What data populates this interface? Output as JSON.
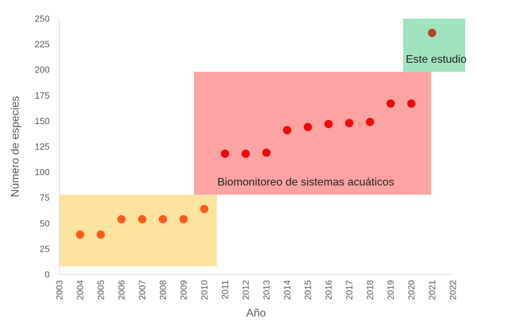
{
  "chart_data": {
    "type": "scatter",
    "title": "",
    "xlabel": "Año",
    "ylabel": "Número de especies",
    "xlim": [
      2003,
      2022
    ],
    "ylim": [
      0,
      250
    ],
    "x_ticks": [
      2003,
      2004,
      2005,
      2006,
      2007,
      2008,
      2009,
      2010,
      2011,
      2012,
      2013,
      2014,
      2015,
      2016,
      2017,
      2018,
      2019,
      2020,
      2021,
      2022
    ],
    "y_ticks": [
      0,
      25,
      50,
      75,
      100,
      125,
      150,
      175,
      200,
      225,
      250
    ],
    "grid": false,
    "legend": "none",
    "regions": [
      {
        "label": "",
        "x": [
          2003.0,
          2010.6
        ],
        "y": [
          8,
          78
        ],
        "color": "#fde3a0"
      },
      {
        "label": "Biomonitoreo de sistemas acuáticos",
        "x": [
          2009.5,
          2020.95
        ],
        "y": [
          78,
          198
        ],
        "color": "#fea3a3"
      },
      {
        "label": "Este estudio",
        "x": [
          2019.6,
          2022.6
        ],
        "y": [
          198,
          250
        ],
        "color": "#a1e2be"
      }
    ],
    "series": [
      {
        "color": "#ff5a1e",
        "points": [
          {
            "x": 2004,
            "y": 39
          },
          {
            "x": 2005,
            "y": 39
          },
          {
            "x": 2006,
            "y": 54
          },
          {
            "x": 2007,
            "y": 54
          },
          {
            "x": 2008,
            "y": 54
          },
          {
            "x": 2009,
            "y": 54
          },
          {
            "x": 2010,
            "y": 64
          }
        ]
      },
      {
        "color": "#ee0a0a",
        "points": [
          {
            "x": 2011,
            "y": 118
          },
          {
            "x": 2012,
            "y": 118
          },
          {
            "x": 2013,
            "y": 119
          },
          {
            "x": 2014,
            "y": 141
          },
          {
            "x": 2015,
            "y": 144
          },
          {
            "x": 2016,
            "y": 147
          },
          {
            "x": 2017,
            "y": 148
          },
          {
            "x": 2018,
            "y": 149
          },
          {
            "x": 2019,
            "y": 167
          },
          {
            "x": 2020,
            "y": 167
          }
        ]
      },
      {
        "color": "#b5432a",
        "points": [
          {
            "x": 2021,
            "y": 236
          }
        ]
      }
    ]
  }
}
